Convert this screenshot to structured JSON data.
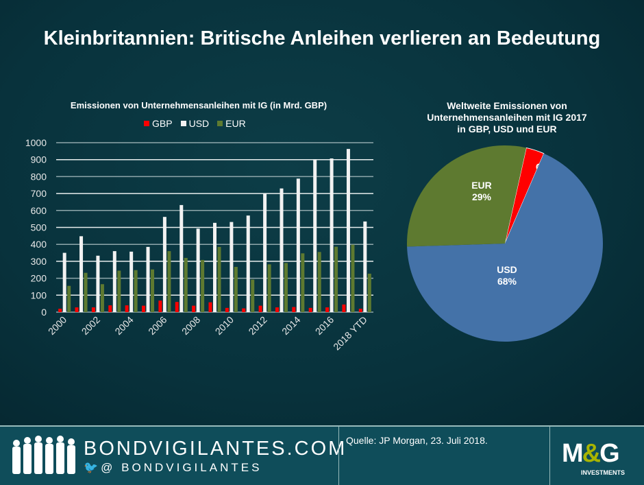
{
  "title": "Kleinbritannien: Britische Anleihen verlieren an Bedeutung",
  "chart_data": [
    {
      "type": "bar",
      "title": "Emissionen von Unternehmensanleihen mit IG (in Mrd. GBP)",
      "categories": [
        "2000",
        "2001",
        "2002",
        "2003",
        "2004",
        "2005",
        "2006",
        "2007",
        "2008",
        "2009",
        "2010",
        "2011",
        "2012",
        "2013",
        "2014",
        "2015",
        "2016",
        "2017",
        "2018 YTD"
      ],
      "x_tick_labels": [
        "2000",
        "2002",
        "2004",
        "2006",
        "2008",
        "2010",
        "2012",
        "2014",
        "2016",
        "2018 YTD"
      ],
      "y_ticks": [
        0,
        100,
        200,
        300,
        400,
        500,
        600,
        700,
        800,
        900,
        1000
      ],
      "ylim": [
        0,
        1000
      ],
      "grid": true,
      "legend_placement": "top",
      "series": [
        {
          "name": "GBP",
          "color": "#ff0000",
          "values": [
            20,
            28,
            28,
            40,
            40,
            38,
            68,
            60,
            38,
            58,
            25,
            22,
            38,
            28,
            30,
            25,
            28,
            45,
            20
          ]
        },
        {
          "name": "USD",
          "color": "#f2f2f2",
          "values": [
            350,
            448,
            333,
            360,
            357,
            385,
            562,
            632,
            493,
            527,
            532,
            570,
            700,
            730,
            788,
            902,
            907,
            963,
            535
          ]
        },
        {
          "name": "EUR",
          "color": "#5e7a30",
          "values": [
            155,
            232,
            165,
            245,
            248,
            252,
            360,
            320,
            308,
            385,
            267,
            192,
            282,
            290,
            347,
            355,
            386,
            398,
            227
          ]
        }
      ]
    },
    {
      "type": "pie",
      "title": "Weltweite Emissionen von Unternehmensanleihen mit IG 2017 in GBP, USD und EUR",
      "title_lines": [
        "Weltweite Emissionen von",
        "Unternehmensanleihen mit IG 2017",
        "in GBP, USD und EUR"
      ],
      "slices": [
        {
          "label": "GBP",
          "value": 3,
          "pct_label": "3%",
          "color": "#ff0000"
        },
        {
          "label": "USD",
          "value": 68,
          "pct_label": "68%",
          "color": "#4472a8"
        },
        {
          "label": "EUR",
          "value": 29,
          "pct_label": "29%",
          "color": "#5e7a30"
        }
      ]
    }
  ],
  "footer": {
    "site": "BONDVIGILANTES.COM",
    "twitter": "@ BONDVIGILANTES",
    "source": "Quelle: JP Morgan, 23. Juli 2018.",
    "logo": "M&G",
    "logo_sub": "INVESTMENTS"
  }
}
